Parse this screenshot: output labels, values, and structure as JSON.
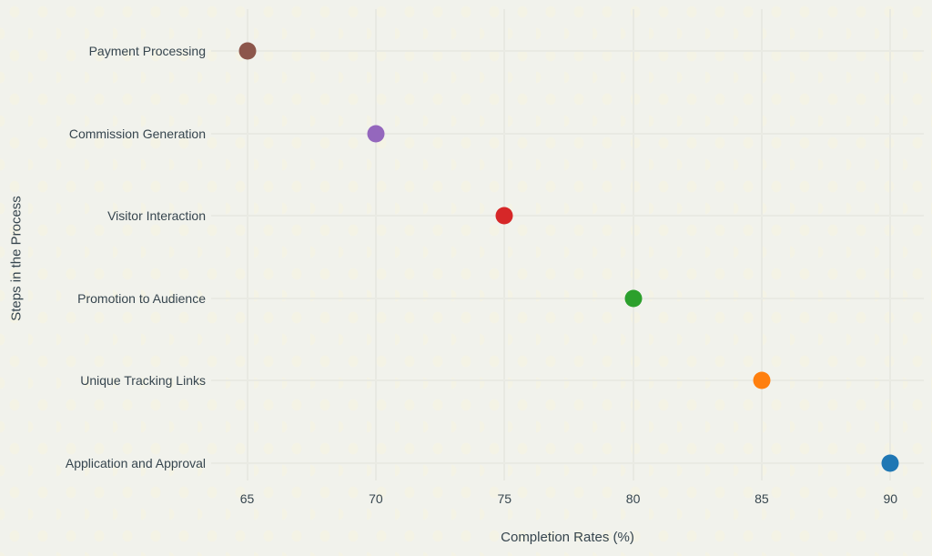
{
  "chart_data": {
    "type": "scatter",
    "orientation": "horizontal-categories",
    "title": "",
    "xlabel": "Completion Rates (%)",
    "ylabel": "Steps in the Process",
    "categories": [
      "Payment Processing",
      "Commission Generation",
      "Visitor Interaction",
      "Promotion to Audience",
      "Unique Tracking Links",
      "Application and Approval"
    ],
    "values": [
      65,
      70,
      75,
      80,
      85,
      90
    ],
    "point_colors": [
      "#8c564b",
      "#9467bd",
      "#d62728",
      "#2ca02c",
      "#ff7f0e",
      "#1f77b4"
    ],
    "x_ticks": [
      65,
      70,
      75,
      80,
      85,
      90
    ],
    "xlim": [
      63.6,
      91.3
    ],
    "grid": true,
    "legend": "none",
    "background_color": "#f1f2ec",
    "text_color": "#36454e",
    "grid_color": "#e8e9e2"
  }
}
